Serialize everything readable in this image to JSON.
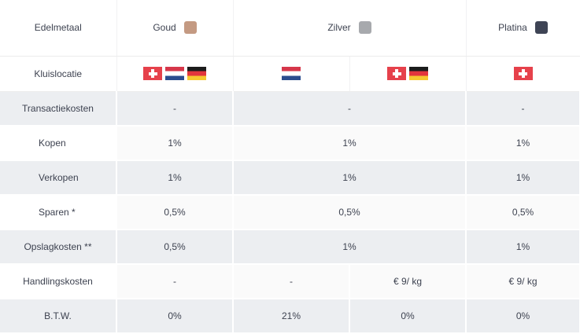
{
  "columns": {
    "label": "Edelmetaal",
    "gold": "Goud",
    "silver": "Zilver",
    "platinum": "Platina"
  },
  "colors": {
    "gold": "#c49a82",
    "silver": "#a7a9ad",
    "platinum": "#3e4455",
    "row_dark": "#eceef1",
    "row_light": "#fafafa"
  },
  "vault": {
    "label": "Kluislocatie",
    "gold": [
      "flag-ch-icon",
      "flag-nl-icon",
      "flag-de-icon"
    ],
    "silver_a": [
      "flag-nl-icon"
    ],
    "silver_b": [
      "flag-ch-icon",
      "flag-de-icon"
    ],
    "platinum": [
      "flag-ch-icon"
    ]
  },
  "rows": {
    "transaction": {
      "label": "Transactiekosten",
      "gold": "-",
      "silver": "-",
      "platinum": "-"
    },
    "buy": {
      "label": "Kopen",
      "gold": "1%",
      "silver": "1%",
      "platinum": "1%"
    },
    "sell": {
      "label": "Verkopen",
      "gold": "1%",
      "silver": "1%",
      "platinum": "1%"
    },
    "save": {
      "label": "Sparen *",
      "gold": "0,5%",
      "silver": "0,5%",
      "platinum": "0,5%"
    },
    "storage": {
      "label": "Opslagkosten **",
      "gold": "0,5%",
      "silver": "1%",
      "platinum": "1%"
    },
    "handling": {
      "label": "Handlingskosten",
      "gold": "-",
      "silver_a": "-",
      "silver_b": "€ 9/ kg",
      "platinum": "€ 9/ kg"
    },
    "vat": {
      "label": "B.T.W.",
      "gold": "0%",
      "silver_a": "21%",
      "silver_b": "0%",
      "platinum": "0%"
    }
  }
}
